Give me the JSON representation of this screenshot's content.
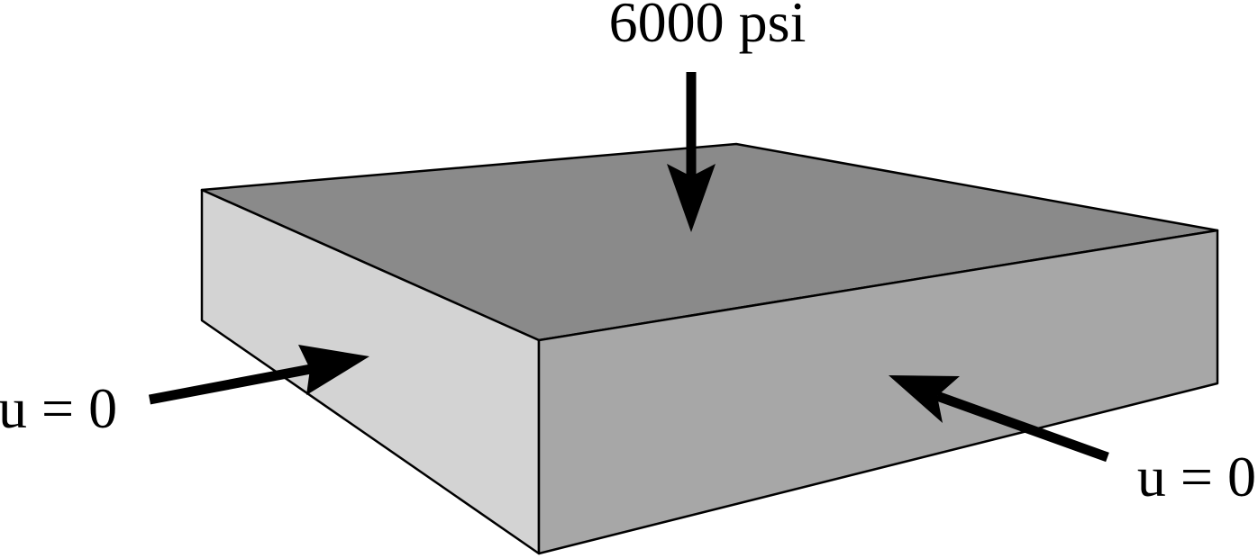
{
  "labels": {
    "top_load": "6000 psi",
    "left_bc": "u = 0",
    "right_bc": "u = 0"
  },
  "colors": {
    "top_face": "#8a8a8a",
    "left_face": "#d3d3d3",
    "front_face": "#a7a7a7",
    "outline": "#000000",
    "arrow": "#000000",
    "background": "#ffffff"
  }
}
